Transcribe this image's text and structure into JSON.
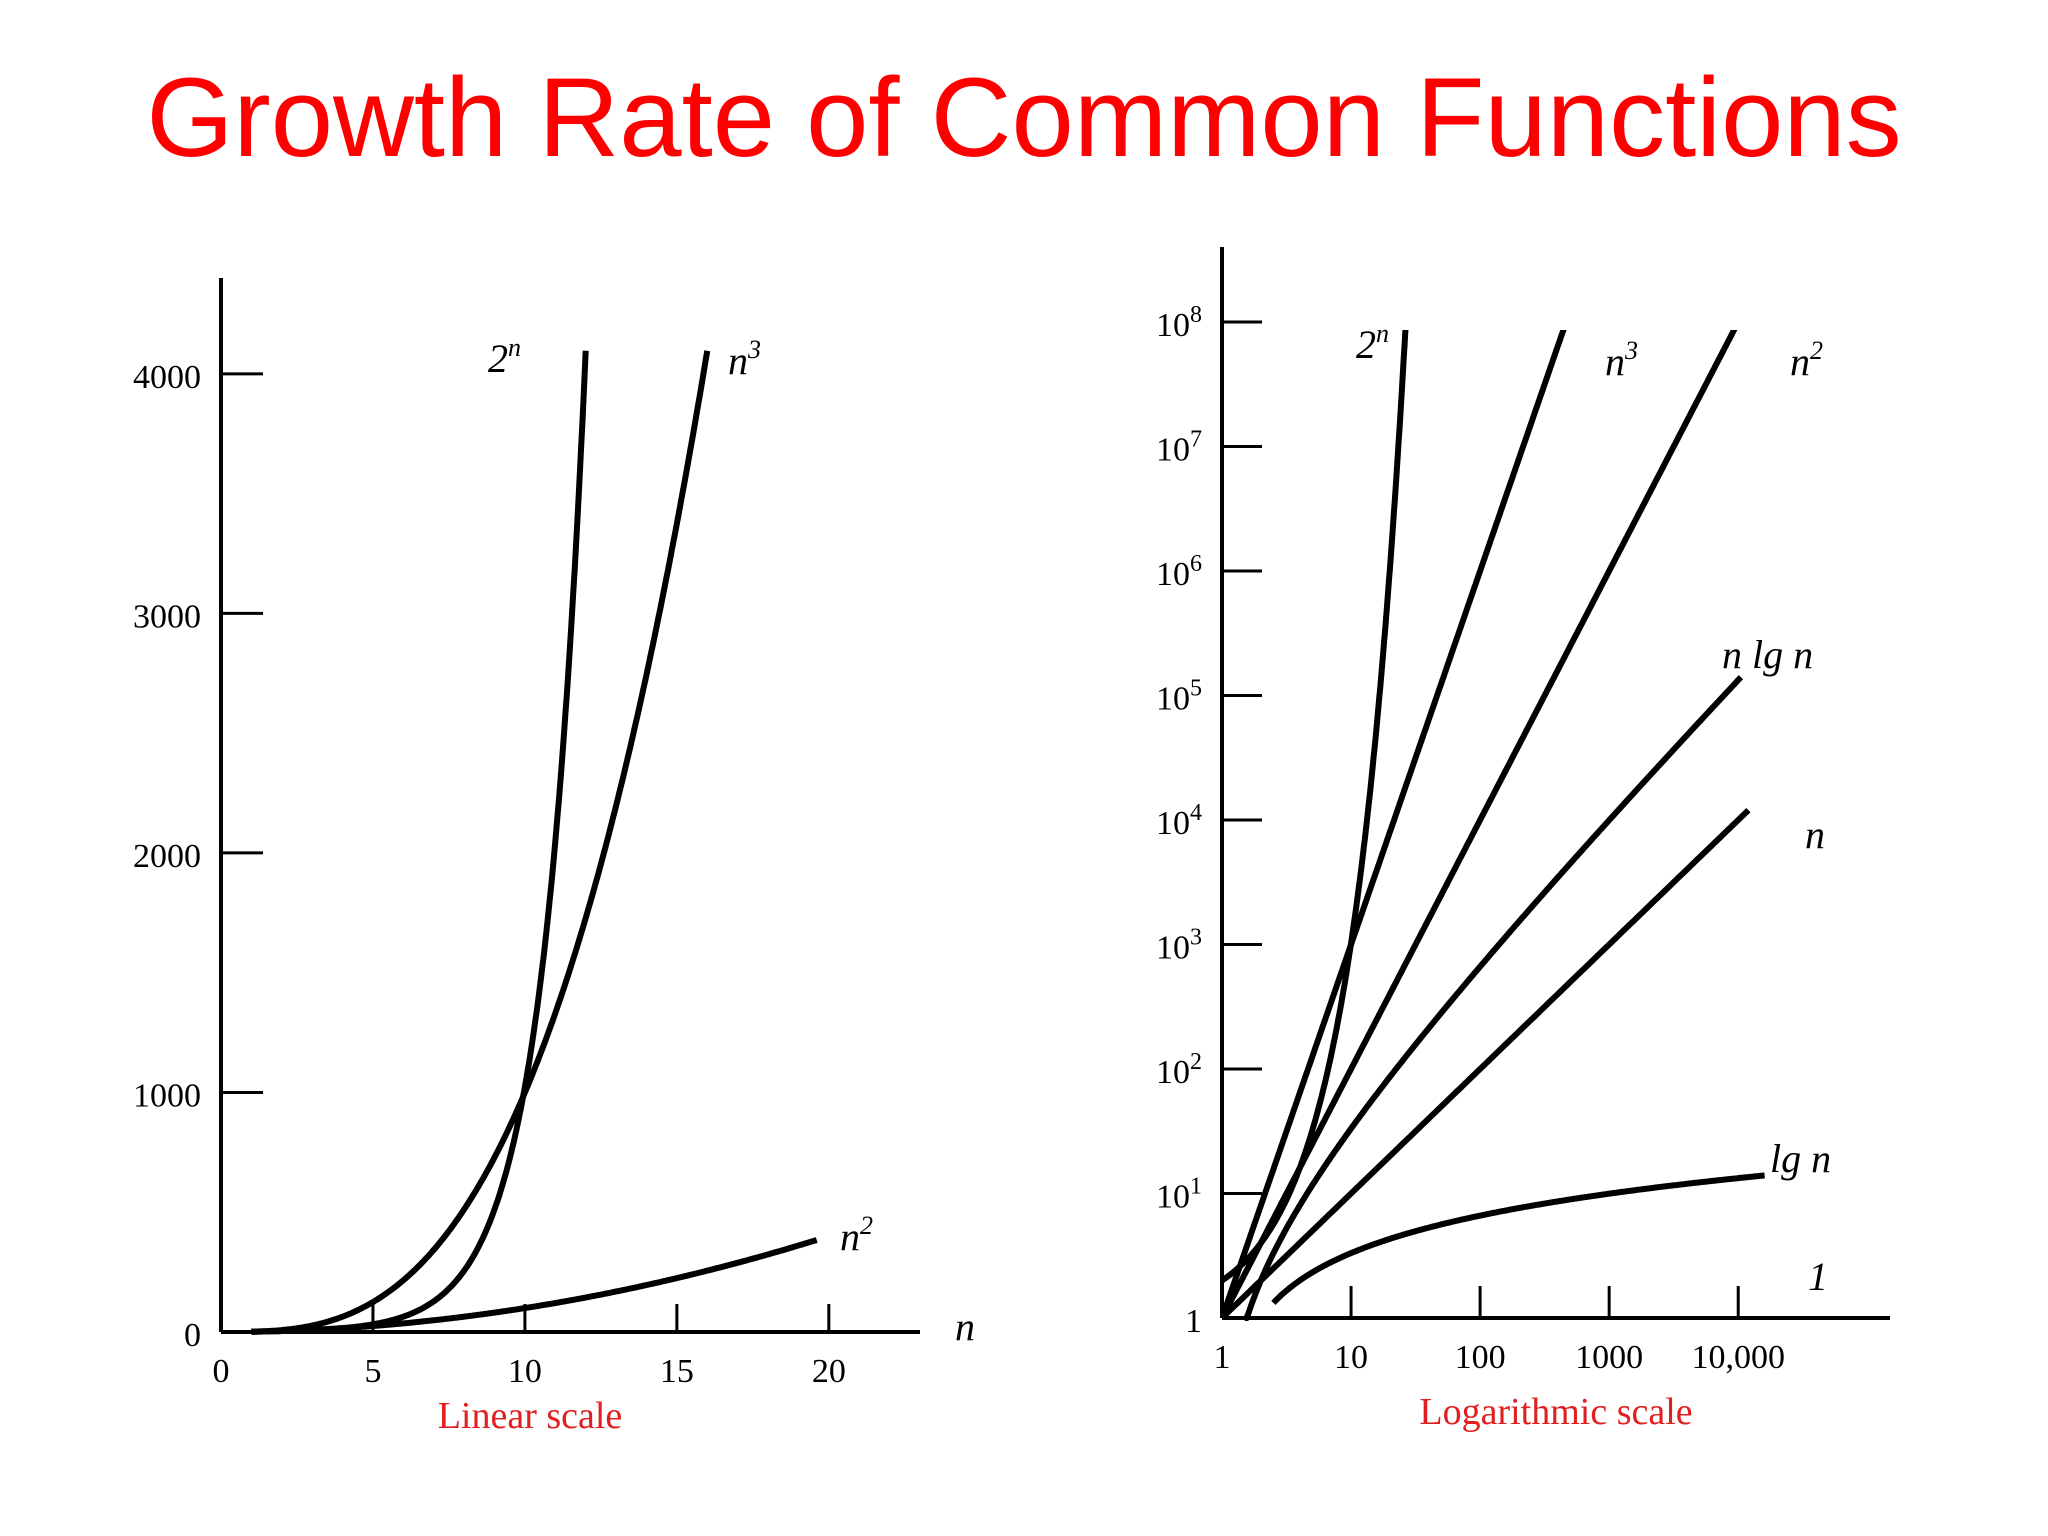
{
  "page": {
    "title": "Growth Rate of Common Functions"
  },
  "colors": {
    "title": "#ff0000",
    "scale_label": "#e02020",
    "ink": "#000000"
  },
  "chart_data": [
    {
      "type": "line",
      "id": "linear",
      "xscale": "linear",
      "yscale": "linear",
      "xlim": [
        0,
        23
      ],
      "ylim": [
        0,
        4400
      ],
      "xlabel": "Linear scale",
      "axis_var": "n",
      "xticks": [
        0,
        5,
        10,
        15,
        20
      ],
      "xtick_labels": [
        "0",
        "5",
        "10",
        "15",
        "20"
      ],
      "yticks": [
        0,
        1000,
        2000,
        3000,
        4000
      ],
      "ytick_labels": [
        "0",
        "1000",
        "2000",
        "3000",
        "4000"
      ],
      "grid": false,
      "series": [
        {
          "name": "2",
          "sup": "n",
          "fn": "pow2",
          "x": [
            1,
            12
          ],
          "label_pos": "top-left"
        },
        {
          "name": "n",
          "sup": "3",
          "fn": "cube",
          "x": [
            1,
            16
          ],
          "label_pos": "top-right"
        },
        {
          "name": "n",
          "sup": "2",
          "fn": "square",
          "x": [
            1,
            19.6
          ],
          "label_pos": "right"
        }
      ]
    },
    {
      "type": "line",
      "id": "log",
      "xscale": "log",
      "yscale": "log",
      "xlim": [
        1,
        150000
      ],
      "ylim": [
        1,
        400000000
      ],
      "xlabel": "Logarithmic scale",
      "xticks": [
        1,
        10,
        100,
        1000,
        10000
      ],
      "xtick_labels": [
        "1",
        "10",
        "100",
        "1000",
        "10,000"
      ],
      "yticks": [
        1,
        10,
        100,
        1000,
        10000,
        100000,
        1000000,
        10000000,
        100000000
      ],
      "ytick_labels": [
        {
          "base": "1",
          "exp": ""
        },
        {
          "base": "10",
          "exp": "1"
        },
        {
          "base": "10",
          "exp": "2"
        },
        {
          "base": "10",
          "exp": "3"
        },
        {
          "base": "10",
          "exp": "4"
        },
        {
          "base": "10",
          "exp": "5"
        },
        {
          "base": "10",
          "exp": "6"
        },
        {
          "base": "10",
          "exp": "7"
        },
        {
          "base": "10",
          "exp": "8"
        }
      ],
      "grid": false,
      "series": [
        {
          "name": "2",
          "sup": "n",
          "fn": "pow2",
          "x": [
            1,
            26.5
          ],
          "label_pos": "top-left"
        },
        {
          "name": "n",
          "sup": "3",
          "fn": "cube",
          "x": [
            1,
            480
          ],
          "label_pos": "right"
        },
        {
          "name": "n",
          "sup": "2",
          "fn": "square",
          "x": [
            1,
            11000
          ],
          "label_pos": "right"
        },
        {
          "name": "n lg n",
          "sup": "",
          "fn": "nlgn",
          "x": [
            1.5,
            10500
          ],
          "label_pos": "above"
        },
        {
          "name": "n",
          "sup": "",
          "fn": "linear",
          "x": [
            1,
            12000
          ],
          "label_pos": "right"
        },
        {
          "name": "lg n",
          "sup": "",
          "fn": "lg",
          "x": [
            2.5,
            16000
          ],
          "label_pos": "above"
        },
        {
          "name": "1",
          "sup": "",
          "fn": "const",
          "x": [],
          "label_pos": "right"
        }
      ]
    }
  ]
}
